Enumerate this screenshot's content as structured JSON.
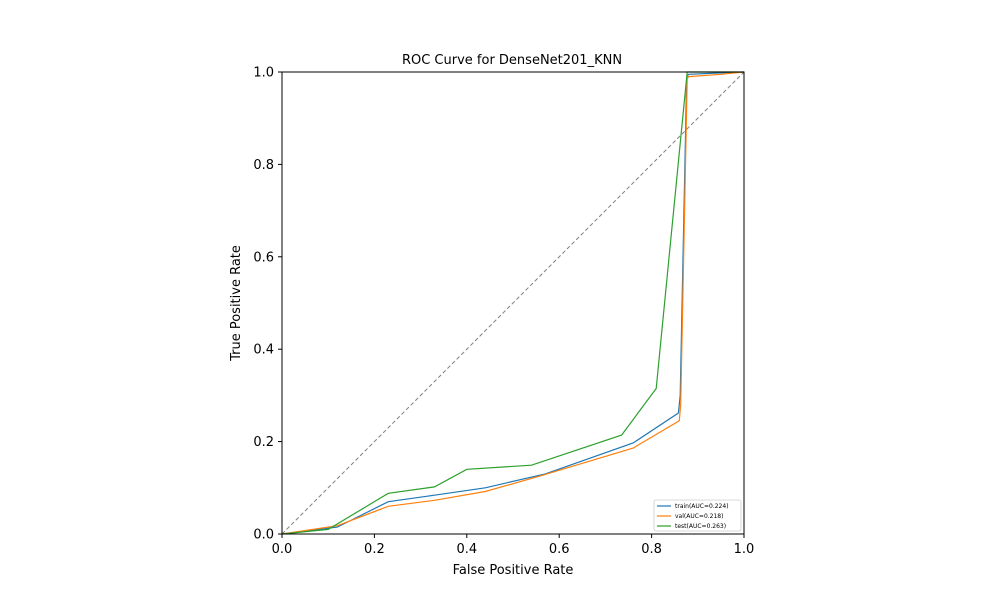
{
  "chart_data": {
    "type": "line",
    "title": "ROC Curve for DenseNet201_KNN",
    "xlabel": "False Positive Rate",
    "ylabel": "True Positive Rate",
    "xlim": [
      0,
      1
    ],
    "ylim": [
      0,
      1
    ],
    "xticks": [
      "0.0",
      "0.2",
      "0.4",
      "0.6",
      "0.8",
      "1.0"
    ],
    "yticks": [
      "0.0",
      "0.2",
      "0.4",
      "0.6",
      "0.8",
      "1.0"
    ],
    "grid": false,
    "legend_position": "bottom-right",
    "diagonal": {
      "style": "dashed",
      "color": "#808080",
      "points": [
        [
          0,
          0
        ],
        [
          1,
          1
        ]
      ]
    },
    "series": [
      {
        "name": "train(AUC=0.224)",
        "color": "#1f77b4",
        "x": [
          0.0,
          0.12,
          0.23,
          0.33,
          0.44,
          0.57,
          0.76,
          0.858,
          0.862,
          0.876,
          0.88,
          0.95,
          1.0
        ],
        "y": [
          0.0,
          0.015,
          0.07,
          0.084,
          0.1,
          0.13,
          0.197,
          0.262,
          0.3,
          0.99,
          0.995,
          0.998,
          1.0
        ]
      },
      {
        "name": "val(AUC=0.218)",
        "color": "#ff7f0e",
        "x": [
          0.0,
          0.12,
          0.23,
          0.33,
          0.44,
          0.56,
          0.76,
          0.86,
          0.863,
          0.877,
          0.88,
          0.95,
          1.0
        ],
        "y": [
          0.0,
          0.018,
          0.06,
          0.073,
          0.092,
          0.126,
          0.186,
          0.245,
          0.28,
          0.985,
          0.99,
          0.995,
          1.0
        ]
      },
      {
        "name": "test(AUC=0.263)",
        "color": "#2ca02c",
        "x": [
          0.0,
          0.1,
          0.23,
          0.33,
          0.4,
          0.54,
          0.735,
          0.81,
          0.875,
          0.877,
          1.0
        ],
        "y": [
          0.0,
          0.01,
          0.088,
          0.102,
          0.14,
          0.149,
          0.214,
          0.315,
          0.98,
          1.0,
          1.0
        ]
      }
    ]
  }
}
